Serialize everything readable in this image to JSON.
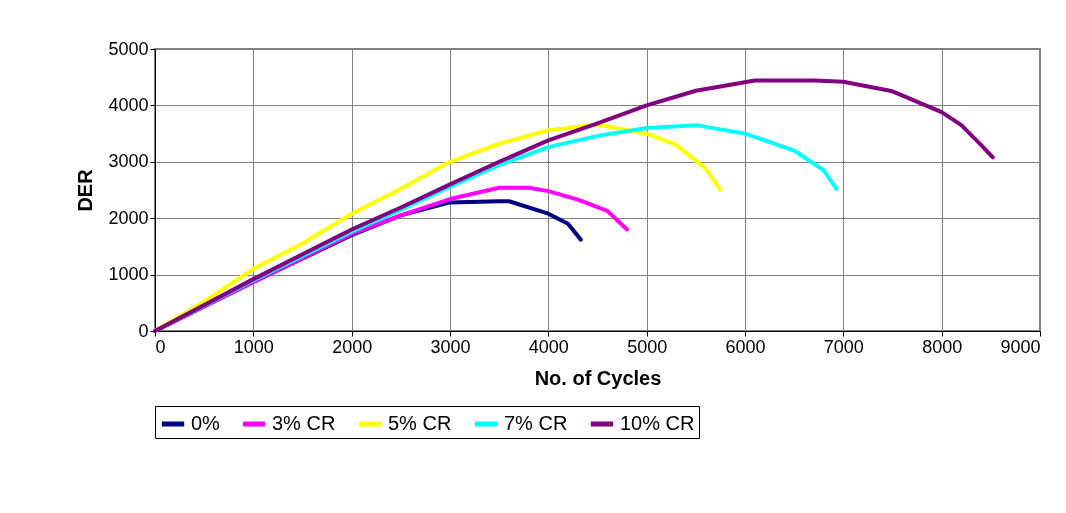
{
  "chart_data": {
    "type": "line",
    "xlabel": "No. of Cycles",
    "ylabel": "DER",
    "xlim": [
      0,
      9000
    ],
    "xticks": [
      0,
      1000,
      2000,
      3000,
      4000,
      5000,
      6000,
      7000,
      8000,
      9000
    ],
    "ylim": [
      0,
      5000
    ],
    "yticks": [
      0,
      1000,
      2000,
      3000,
      4000,
      5000
    ],
    "grid": true,
    "legend": "bottom",
    "marker": "none",
    "line_style": "solid",
    "series": [
      {
        "name": "0%",
        "color": "#000080",
        "x": [
          0,
          1000,
          2000,
          2500,
          3000,
          3500,
          3600,
          4000,
          4200,
          4330
        ],
        "values": [
          0,
          870,
          1700,
          2050,
          2280,
          2300,
          2300,
          2080,
          1900,
          1620
        ]
      },
      {
        "name": "3% CR",
        "color": "#ff00ff",
        "x": [
          0,
          1000,
          2000,
          2500,
          3000,
          3500,
          3800,
          4000,
          4300,
          4600,
          4800
        ],
        "values": [
          0,
          870,
          1720,
          2050,
          2340,
          2540,
          2540,
          2480,
          2330,
          2130,
          1800
        ]
      },
      {
        "name": "5% CR",
        "color": "#ffff00",
        "x": [
          0,
          500,
          1000,
          1500,
          2000,
          2500,
          3000,
          3500,
          4000,
          4500,
          5000,
          5300,
          5600,
          5750
        ],
        "values": [
          0,
          520,
          1100,
          1550,
          2080,
          2520,
          3000,
          3320,
          3560,
          3660,
          3500,
          3300,
          2880,
          2500
        ]
      },
      {
        "name": "7% CR",
        "color": "#00ffff",
        "x": [
          0,
          1000,
          2000,
          2500,
          3000,
          3500,
          4000,
          4500,
          5000,
          5500,
          6000,
          6500,
          6800,
          6930
        ],
        "values": [
          0,
          900,
          1760,
          2150,
          2560,
          2940,
          3260,
          3460,
          3600,
          3650,
          3500,
          3200,
          2850,
          2520
        ]
      },
      {
        "name": "10% CR",
        "color": "#800080",
        "x": [
          0,
          1000,
          2000,
          2500,
          3000,
          3500,
          4000,
          4500,
          5000,
          5500,
          6100,
          6700,
          7000,
          7500,
          8000,
          8200,
          8400,
          8520
        ],
        "values": [
          0,
          920,
          1800,
          2190,
          2600,
          3000,
          3380,
          3680,
          4000,
          4260,
          4440,
          4440,
          4420,
          4250,
          3880,
          3650,
          3300,
          3080
        ]
      }
    ]
  }
}
